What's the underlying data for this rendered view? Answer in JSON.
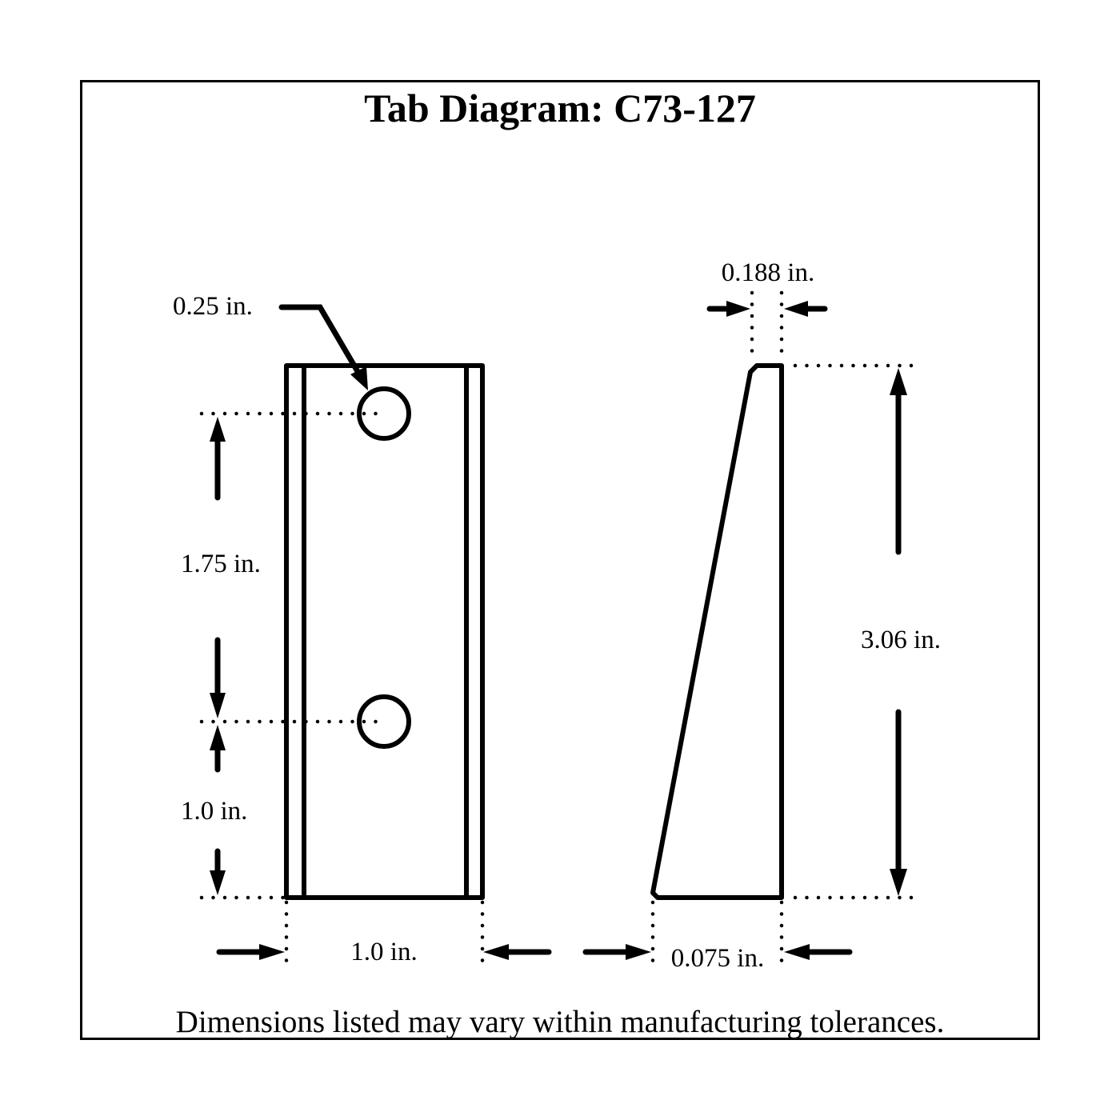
{
  "title": "Tab Diagram: C73-127",
  "footnote": "Dimensions listed may vary within manufacturing tolerances.",
  "dimensions": {
    "hole_diameter": "0.25 in.",
    "hole_spacing": "1.75 in.",
    "hole_to_bottom": "1.0 in.",
    "width": "1.0 in.",
    "top_thickness": "0.188 in.",
    "bottom_thickness": "0.075 in.",
    "height": "3.06 in."
  },
  "colors": {
    "line": "#000000",
    "background": "#ffffff"
  }
}
